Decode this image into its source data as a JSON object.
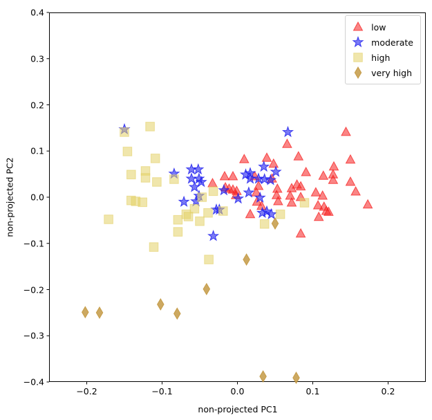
{
  "chart_data": {
    "type": "scatter",
    "title": "",
    "xlabel": "non-projected PC1",
    "ylabel": "non-projected PC2",
    "xlim": [
      -0.25,
      0.25
    ],
    "ylim": [
      -0.4,
      0.4
    ],
    "xticks": [
      -0.2,
      -0.1,
      0.0,
      0.1,
      0.2
    ],
    "xtick_labels": [
      "−0.2",
      "−0.1",
      "0.0",
      "0.1",
      "0.2"
    ],
    "yticks": [
      0.4,
      0.3,
      0.2,
      0.1,
      0.0,
      -0.1,
      -0.2,
      -0.3,
      -0.4
    ],
    "ytick_labels": [
      "0.4",
      "0.3",
      "0.2",
      "0.1",
      "0.0",
      "−0.1",
      "−0.2",
      "−0.3",
      "−0.4"
    ],
    "grid": false,
    "legend_position": "upper right",
    "series": [
      {
        "name": "low",
        "marker": "triangle",
        "color": "#f52020",
        "fill_opacity": 0.55,
        "stroke_opacity": 0.75,
        "points": [
          [
            -0.033,
            0.03
          ],
          [
            -0.017,
            0.045
          ],
          [
            -0.006,
            0.045
          ],
          [
            -0.016,
            0.021
          ],
          [
            -0.011,
            0.018
          ],
          [
            -0.006,
            0.016
          ],
          [
            -0.001,
            0.013
          ],
          [
            -0.002,
            0.004
          ],
          [
            0.009,
            0.082
          ],
          [
            0.039,
            0.085
          ],
          [
            0.081,
            0.088
          ],
          [
            0.048,
            0.072
          ],
          [
            0.023,
            0.045
          ],
          [
            0.046,
            0.04
          ],
          [
            0.028,
            0.024
          ],
          [
            0.079,
            0.027
          ],
          [
            0.084,
            0.023
          ],
          [
            0.072,
            0.019
          ],
          [
            0.025,
            0.01
          ],
          [
            0.053,
            0.018
          ],
          [
            0.052,
            0.004
          ],
          [
            0.054,
            -0.009
          ],
          [
            0.07,
            0.003
          ],
          [
            0.084,
            0.0
          ],
          [
            0.072,
            -0.012
          ],
          [
            0.026,
            -0.01
          ],
          [
            0.032,
            -0.019
          ],
          [
            0.017,
            -0.037
          ],
          [
            0.066,
            0.115
          ],
          [
            0.144,
            0.141
          ],
          [
            0.15,
            0.081
          ],
          [
            0.128,
            0.066
          ],
          [
            0.091,
            0.054
          ],
          [
            0.114,
            0.046
          ],
          [
            0.127,
            0.049
          ],
          [
            0.127,
            0.037
          ],
          [
            0.15,
            0.033
          ],
          [
            0.157,
            0.012
          ],
          [
            0.104,
            0.01
          ],
          [
            0.113,
            0.003
          ],
          [
            0.173,
            -0.016
          ],
          [
            0.107,
            -0.018
          ],
          [
            0.115,
            -0.021
          ],
          [
            0.118,
            -0.03
          ],
          [
            0.121,
            -0.032
          ],
          [
            0.108,
            -0.043
          ],
          [
            0.084,
            -0.079
          ]
        ]
      },
      {
        "name": "moderate",
        "marker": "star",
        "color": "#2222ee",
        "fill_opacity": 0.6,
        "stroke_opacity": 0.85,
        "points": [
          [
            -0.15,
            0.147
          ],
          [
            -0.084,
            0.051
          ],
          [
            -0.061,
            0.06
          ],
          [
            -0.052,
            0.06
          ],
          [
            -0.061,
            0.04
          ],
          [
            -0.051,
            0.04
          ],
          [
            -0.048,
            0.033
          ],
          [
            -0.057,
            0.022
          ],
          [
            -0.018,
            0.015
          ],
          [
            -0.051,
            0.003
          ],
          [
            -0.071,
            -0.01
          ],
          [
            -0.055,
            -0.009
          ],
          [
            -0.028,
            -0.027
          ],
          [
            -0.024,
            -0.027
          ],
          [
            -0.032,
            -0.084
          ],
          [
            0.001,
            -0.003
          ],
          [
            0.067,
            0.141
          ],
          [
            0.035,
            0.066
          ],
          [
            0.011,
            0.049
          ],
          [
            0.017,
            0.052
          ],
          [
            0.017,
            0.04
          ],
          [
            0.051,
            0.055
          ],
          [
            0.028,
            0.04
          ],
          [
            0.036,
            0.039
          ],
          [
            0.044,
            0.037
          ],
          [
            0.015,
            0.01
          ],
          [
            0.03,
            -0.001
          ],
          [
            0.033,
            -0.034
          ],
          [
            0.039,
            -0.031
          ],
          [
            0.045,
            -0.037
          ]
        ]
      },
      {
        "name": "high",
        "marker": "square",
        "color": "#e3d167",
        "fill_opacity": 0.55,
        "stroke_opacity": 0.6,
        "points": [
          [
            -0.15,
            0.141
          ],
          [
            -0.116,
            0.153
          ],
          [
            -0.146,
            0.099
          ],
          [
            -0.109,
            0.084
          ],
          [
            -0.141,
            0.049
          ],
          [
            -0.122,
            0.057
          ],
          [
            -0.122,
            0.042
          ],
          [
            -0.107,
            0.033
          ],
          [
            -0.141,
            -0.007
          ],
          [
            -0.135,
            -0.009
          ],
          [
            -0.126,
            -0.011
          ],
          [
            -0.171,
            -0.048
          ],
          [
            -0.111,
            -0.108
          ],
          [
            -0.084,
            0.039
          ],
          [
            -0.032,
            0.013
          ],
          [
            -0.047,
            0.0
          ],
          [
            -0.057,
            -0.025
          ],
          [
            -0.068,
            -0.037
          ],
          [
            -0.05,
            -0.052
          ],
          [
            -0.039,
            -0.034
          ],
          [
            -0.019,
            -0.03
          ],
          [
            -0.079,
            -0.049
          ],
          [
            -0.065,
            -0.042
          ],
          [
            -0.079,
            -0.075
          ],
          [
            -0.038,
            -0.135
          ],
          [
            0.057,
            -0.037
          ],
          [
            0.089,
            -0.012
          ],
          [
            0.036,
            -0.058
          ]
        ]
      },
      {
        "name": "very high",
        "marker": "thin-diamond",
        "color": "#c49a45",
        "fill_opacity": 0.85,
        "stroke_opacity": 0.95,
        "points": [
          [
            -0.202,
            -0.249
          ],
          [
            -0.183,
            -0.25
          ],
          [
            -0.102,
            -0.232
          ],
          [
            -0.08,
            -0.252
          ],
          [
            -0.041,
            -0.199
          ],
          [
            0.012,
            -0.135
          ],
          [
            0.05,
            -0.057
          ],
          [
            0.034,
            -0.388
          ],
          [
            0.078,
            -0.391
          ]
        ]
      }
    ]
  }
}
